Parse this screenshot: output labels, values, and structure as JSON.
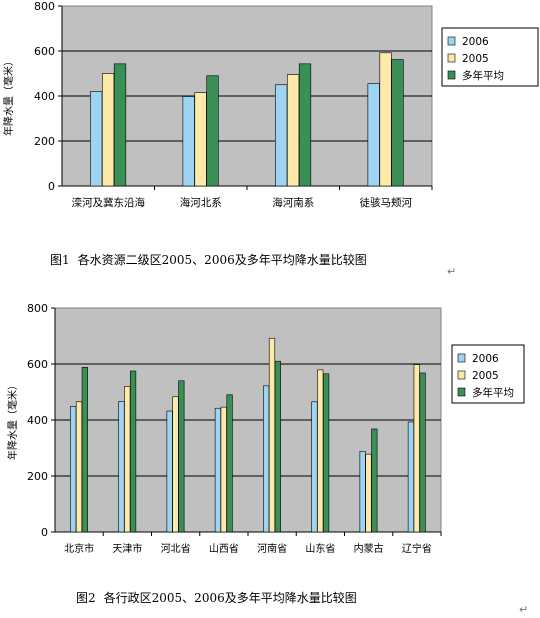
{
  "colors": {
    "plot_bg": "#c0c0c0",
    "bar_2005": "#9fd3f2",
    "bar_2006": "#ffe9a8",
    "bar_avg": "#3a8f57",
    "border": "#808080",
    "grid": "#000000"
  },
  "chart_data": [
    {
      "type": "bar",
      "title": "",
      "xlabel": "",
      "ylabel": "年降水量（毫米）",
      "ylim": [
        0,
        800
      ],
      "yticks": [
        "0",
        "200",
        "400",
        "600",
        "800"
      ],
      "grid": true,
      "legend_position": "right",
      "categories": [
        "滦河及冀东沿海",
        "海河北系",
        "海河南系",
        "徒骇马颊河"
      ],
      "series": [
        {
          "name": "2006",
          "color_key": "bar_2005",
          "values": [
            420,
            398,
            450,
            455
          ]
        },
        {
          "name": "2005",
          "color_key": "bar_2006",
          "values": [
            500,
            415,
            495,
            592
          ]
        },
        {
          "name": "多年平均",
          "color_key": "bar_avg",
          "values": [
            543,
            490,
            543,
            562
          ]
        }
      ]
    },
    {
      "type": "bar",
      "title": "",
      "xlabel": "",
      "ylabel": "年降水量（毫米）",
      "ylim": [
        0,
        800
      ],
      "yticks": [
        "0",
        "200",
        "400",
        "600",
        "800"
      ],
      "grid": true,
      "legend_position": "right",
      "categories": [
        "北京市",
        "天津市",
        "河北省",
        "山西省",
        "河南省",
        "山东省",
        "内蒙古",
        "辽宁省"
      ],
      "series": [
        {
          "name": "2006",
          "color_key": "bar_2005",
          "values": [
            448,
            466,
            432,
            442,
            522,
            465,
            288,
            393
          ]
        },
        {
          "name": "2005",
          "color_key": "bar_2006",
          "values": [
            465,
            520,
            483,
            446,
            692,
            579,
            278,
            598
          ]
        },
        {
          "name": "多年平均",
          "color_key": "bar_avg",
          "values": [
            588,
            575,
            540,
            490,
            610,
            565,
            368,
            568
          ]
        }
      ]
    }
  ],
  "captions": [
    {
      "prefix": "图1",
      "text": "各水资源二级区2005、2006及多年平均降水量比较图"
    },
    {
      "prefix": "图2",
      "text": "各行政区2005、2006及多年平均降水量比较图"
    }
  ],
  "paragraph_mark": "↵"
}
